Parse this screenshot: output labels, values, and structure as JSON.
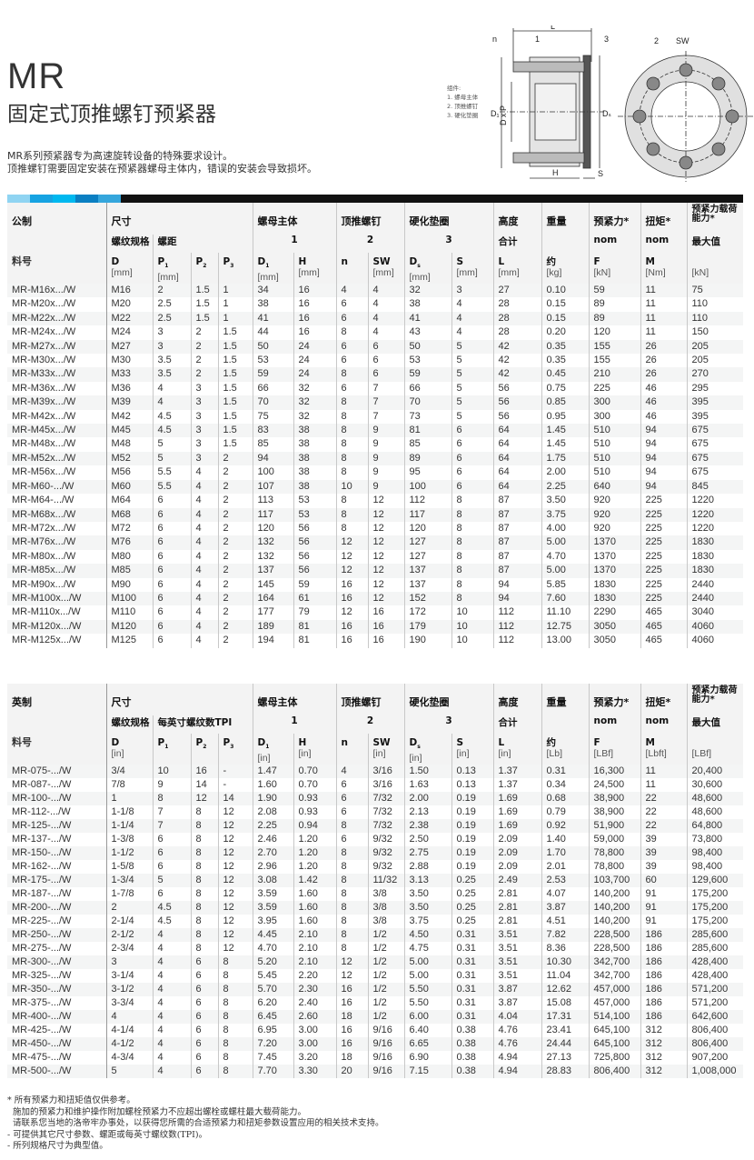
{
  "header": {
    "title": "MR",
    "subtitle": "固定式顶推螺钉预紧器",
    "description": [
      "MR系列预紧器专为高速旋转设备的特殊要求设计。",
      "顶推螺钉需要固定安装在预紧器螺母主体内，错误的安装会导致损坏。"
    ]
  },
  "diagram": {
    "legend_title": "组件:",
    "legend_items": [
      "1. 螺母主体",
      "2. 顶推螺钉",
      "3. 硬化垫圈"
    ],
    "labels": {
      "L": "L",
      "n": "n",
      "one": "1",
      "two": "2",
      "three": "3",
      "SW": "SW",
      "D1": "D₁",
      "DxP": "D x P",
      "Ds": "Dₛ",
      "H": "H",
      "S": "S"
    }
  },
  "banner_colors": [
    "#8fd4f2",
    "#16a3e2",
    "#00b8ef",
    "#0a7fc2",
    "#35a6dc"
  ],
  "metric": {
    "groups": {
      "system": "公制",
      "size": "尺寸",
      "body": "螺母主体",
      "screw": "顶推螺钉",
      "washer": "硬化垫圈",
      "height": "高度",
      "weight": "重量",
      "preload": "预紧力*",
      "torque": "扭矩*",
      "capacity": "预紧力载荷能力*"
    },
    "sub": {
      "thread": "螺纹规格",
      "pitch": "螺距",
      "body": "1",
      "screw": "2",
      "washer": "3",
      "height": "合计",
      "preload": "nom",
      "torque": "nom",
      "capacity": "最大值"
    },
    "part_label": "料号",
    "symbols": [
      "D",
      "P1",
      "P2",
      "P3",
      "D1",
      "H",
      "n",
      "SW",
      "Ds",
      "S",
      "L",
      "约",
      "F",
      "M",
      ""
    ],
    "units": [
      "[mm]",
      "[mm]",
      "",
      "",
      "[mm]",
      "[mm]",
      "",
      "[mm]",
      "[mm]",
      "[mm]",
      "[mm]",
      "[kg]",
      "[kN]",
      "[Nm]",
      "[kN]"
    ],
    "rows": [
      [
        "MR-M16x.../W",
        "M16",
        "2",
        "1.5",
        "1",
        "34",
        "16",
        "4",
        "4",
        "32",
        "3",
        "27",
        "0.10",
        "59",
        "11",
        "75"
      ],
      [
        "MR-M20x.../W",
        "M20",
        "2.5",
        "1.5",
        "1",
        "38",
        "16",
        "6",
        "4",
        "38",
        "4",
        "28",
        "0.15",
        "89",
        "11",
        "110"
      ],
      [
        "MR-M22x.../W",
        "M22",
        "2.5",
        "1.5",
        "1",
        "41",
        "16",
        "6",
        "4",
        "41",
        "4",
        "28",
        "0.15",
        "89",
        "11",
        "110"
      ],
      [
        "MR-M24x.../W",
        "M24",
        "3",
        "2",
        "1.5",
        "44",
        "16",
        "8",
        "4",
        "43",
        "4",
        "28",
        "0.20",
        "120",
        "11",
        "150"
      ],
      [
        "MR-M27x.../W",
        "M27",
        "3",
        "2",
        "1.5",
        "50",
        "24",
        "6",
        "6",
        "50",
        "5",
        "42",
        "0.35",
        "155",
        "26",
        "205"
      ],
      [
        "MR-M30x.../W",
        "M30",
        "3.5",
        "2",
        "1.5",
        "53",
        "24",
        "6",
        "6",
        "53",
        "5",
        "42",
        "0.35",
        "155",
        "26",
        "205"
      ],
      [
        "MR-M33x.../W",
        "M33",
        "3.5",
        "2",
        "1.5",
        "59",
        "24",
        "8",
        "6",
        "59",
        "5",
        "42",
        "0.45",
        "210",
        "26",
        "270"
      ],
      [
        "MR-M36x.../W",
        "M36",
        "4",
        "3",
        "1.5",
        "66",
        "32",
        "6",
        "7",
        "66",
        "5",
        "56",
        "0.75",
        "225",
        "46",
        "295"
      ],
      [
        "MR-M39x.../W",
        "M39",
        "4",
        "3",
        "1.5",
        "70",
        "32",
        "8",
        "7",
        "70",
        "5",
        "56",
        "0.85",
        "300",
        "46",
        "395"
      ],
      [
        "MR-M42x.../W",
        "M42",
        "4.5",
        "3",
        "1.5",
        "75",
        "32",
        "8",
        "7",
        "73",
        "5",
        "56",
        "0.95",
        "300",
        "46",
        "395"
      ],
      [
        "MR-M45x.../W",
        "M45",
        "4.5",
        "3",
        "1.5",
        "83",
        "38",
        "8",
        "9",
        "81",
        "6",
        "64",
        "1.45",
        "510",
        "94",
        "675"
      ],
      [
        "MR-M48x.../W",
        "M48",
        "5",
        "3",
        "1.5",
        "85",
        "38",
        "8",
        "9",
        "85",
        "6",
        "64",
        "1.45",
        "510",
        "94",
        "675"
      ],
      [
        "MR-M52x.../W",
        "M52",
        "5",
        "3",
        "2",
        "94",
        "38",
        "8",
        "9",
        "89",
        "6",
        "64",
        "1.75",
        "510",
        "94",
        "675"
      ],
      [
        "MR-M56x.../W",
        "M56",
        "5.5",
        "4",
        "2",
        "100",
        "38",
        "8",
        "9",
        "95",
        "6",
        "64",
        "2.00",
        "510",
        "94",
        "675"
      ],
      [
        "MR-M60-.../W",
        "M60",
        "5.5",
        "4",
        "2",
        "107",
        "38",
        "10",
        "9",
        "100",
        "6",
        "64",
        "2.25",
        "640",
        "94",
        "845"
      ],
      [
        "MR-M64-.../W",
        "M64",
        "6",
        "4",
        "2",
        "113",
        "53",
        "8",
        "12",
        "112",
        "8",
        "87",
        "3.50",
        "920",
        "225",
        "1220"
      ],
      [
        "MR-M68x.../W",
        "M68",
        "6",
        "4",
        "2",
        "117",
        "53",
        "8",
        "12",
        "117",
        "8",
        "87",
        "3.75",
        "920",
        "225",
        "1220"
      ],
      [
        "MR-M72x.../W",
        "M72",
        "6",
        "4",
        "2",
        "120",
        "56",
        "8",
        "12",
        "120",
        "8",
        "87",
        "4.00",
        "920",
        "225",
        "1220"
      ],
      [
        "MR-M76x.../W",
        "M76",
        "6",
        "4",
        "2",
        "132",
        "56",
        "12",
        "12",
        "127",
        "8",
        "87",
        "5.00",
        "1370",
        "225",
        "1830"
      ],
      [
        "MR-M80x.../W",
        "M80",
        "6",
        "4",
        "2",
        "132",
        "56",
        "12",
        "12",
        "127",
        "8",
        "87",
        "4.70",
        "1370",
        "225",
        "1830"
      ],
      [
        "MR-M85x.../W",
        "M85",
        "6",
        "4",
        "2",
        "137",
        "56",
        "12",
        "12",
        "137",
        "8",
        "87",
        "5.00",
        "1370",
        "225",
        "1830"
      ],
      [
        "MR-M90x.../W",
        "M90",
        "6",
        "4",
        "2",
        "145",
        "59",
        "16",
        "12",
        "137",
        "8",
        "94",
        "5.85",
        "1830",
        "225",
        "2440"
      ],
      [
        "MR-M100x.../W",
        "M100",
        "6",
        "4",
        "2",
        "164",
        "61",
        "16",
        "12",
        "152",
        "8",
        "94",
        "7.60",
        "1830",
        "225",
        "2440"
      ],
      [
        "MR-M110x.../W",
        "M110",
        "6",
        "4",
        "2",
        "177",
        "79",
        "12",
        "16",
        "172",
        "10",
        "112",
        "11.10",
        "2290",
        "465",
        "3040"
      ],
      [
        "MR-M120x.../W",
        "M120",
        "6",
        "4",
        "2",
        "189",
        "81",
        "16",
        "16",
        "179",
        "10",
        "112",
        "12.75",
        "3050",
        "465",
        "4060"
      ],
      [
        "MR-M125x.../W",
        "M125",
        "6",
        "4",
        "2",
        "194",
        "81",
        "16",
        "16",
        "190",
        "10",
        "112",
        "13.00",
        "3050",
        "465",
        "4060"
      ]
    ]
  },
  "imperial": {
    "groups": {
      "system": "英制",
      "size": "尺寸",
      "body": "螺母主体",
      "screw": "顶推螺钉",
      "washer": "硬化垫圈",
      "height": "高度",
      "weight": "重量",
      "preload": "预紧力*",
      "torque": "扭矩*",
      "capacity": "预紧力载荷能力*"
    },
    "sub": {
      "thread": "螺纹规格",
      "pitch": "每英寸螺纹数TPI",
      "body": "1",
      "screw": "2",
      "washer": "3",
      "height": "合计",
      "preload": "nom",
      "torque": "nom",
      "capacity": "最大值"
    },
    "part_label": "料号",
    "symbols": [
      "D",
      "P1",
      "P2",
      "P3",
      "D1",
      "H",
      "n",
      "SW",
      "Ds",
      "S",
      "L",
      "约",
      "F",
      "M",
      ""
    ],
    "units": [
      "[in]",
      "",
      "",
      "",
      "[in]",
      "[in]",
      "",
      "[in]",
      "[in]",
      "[in]",
      "[in]",
      "[Lb]",
      "[LBf]",
      "[Lbft]",
      "[LBf]"
    ],
    "rows": [
      [
        "MR-075-.../W",
        "3/4",
        "10",
        "16",
        "-",
        "1.47",
        "0.70",
        "4",
        "3/16",
        "1.50",
        "0.13",
        "1.37",
        "0.31",
        "16,300",
        "11",
        "20,400"
      ],
      [
        "MR-087-.../W",
        "7/8",
        "9",
        "14",
        "-",
        "1.60",
        "0.70",
        "6",
        "3/16",
        "1.63",
        "0.13",
        "1.37",
        "0.34",
        "24,500",
        "11",
        "30,600"
      ],
      [
        "MR-100-.../W",
        "1",
        "8",
        "12",
        "14",
        "1.90",
        "0.93",
        "6",
        "7/32",
        "2.00",
        "0.19",
        "1.69",
        "0.68",
        "38,900",
        "22",
        "48,600"
      ],
      [
        "MR-112-.../W",
        "1-1/8",
        "7",
        "8",
        "12",
        "2.08",
        "0.93",
        "6",
        "7/32",
        "2.13",
        "0.19",
        "1.69",
        "0.79",
        "38,900",
        "22",
        "48,600"
      ],
      [
        "MR-125-.../W",
        "1-1/4",
        "7",
        "8",
        "12",
        "2.25",
        "0.94",
        "8",
        "7/32",
        "2.38",
        "0.19",
        "1.69",
        "0.92",
        "51,900",
        "22",
        "64,800"
      ],
      [
        "MR-137-.../W",
        "1-3/8",
        "6",
        "8",
        "12",
        "2.46",
        "1.20",
        "6",
        "9/32",
        "2.50",
        "0.19",
        "2.09",
        "1.40",
        "59,000",
        "39",
        "73,800"
      ],
      [
        "MR-150-.../W",
        "1-1/2",
        "6",
        "8",
        "12",
        "2.70",
        "1.20",
        "8",
        "9/32",
        "2.75",
        "0.19",
        "2.09",
        "1.70",
        "78,800",
        "39",
        "98,400"
      ],
      [
        "MR-162-.../W",
        "1-5/8",
        "6",
        "8",
        "12",
        "2.96",
        "1.20",
        "8",
        "9/32",
        "2.88",
        "0.19",
        "2.09",
        "2.01",
        "78,800",
        "39",
        "98,400"
      ],
      [
        "MR-175-.../W",
        "1-3/4",
        "5",
        "8",
        "12",
        "3.08",
        "1.42",
        "8",
        "11/32",
        "3.13",
        "0.25",
        "2.49",
        "2.53",
        "103,700",
        "60",
        "129,600"
      ],
      [
        "MR-187-.../W",
        "1-7/8",
        "6",
        "8",
        "12",
        "3.59",
        "1.60",
        "8",
        "3/8",
        "3.50",
        "0.25",
        "2.81",
        "4.07",
        "140,200",
        "91",
        "175,200"
      ],
      [
        "MR-200-.../W",
        "2",
        "4.5",
        "8",
        "12",
        "3.59",
        "1.60",
        "8",
        "3/8",
        "3.50",
        "0.25",
        "2.81",
        "3.87",
        "140,200",
        "91",
        "175,200"
      ],
      [
        "MR-225-.../W",
        "2-1/4",
        "4.5",
        "8",
        "12",
        "3.95",
        "1.60",
        "8",
        "3/8",
        "3.75",
        "0.25",
        "2.81",
        "4.51",
        "140,200",
        "91",
        "175,200"
      ],
      [
        "MR-250-.../W",
        "2-1/2",
        "4",
        "8",
        "12",
        "4.45",
        "2.10",
        "8",
        "1/2",
        "4.50",
        "0.31",
        "3.51",
        "7.82",
        "228,500",
        "186",
        "285,600"
      ],
      [
        "MR-275-.../W",
        "2-3/4",
        "4",
        "8",
        "12",
        "4.70",
        "2.10",
        "8",
        "1/2",
        "4.75",
        "0.31",
        "3.51",
        "8.36",
        "228,500",
        "186",
        "285,600"
      ],
      [
        "MR-300-.../W",
        "3",
        "4",
        "6",
        "8",
        "5.20",
        "2.10",
        "12",
        "1/2",
        "5.00",
        "0.31",
        "3.51",
        "10.30",
        "342,700",
        "186",
        "428,400"
      ],
      [
        "MR-325-.../W",
        "3-1/4",
        "4",
        "6",
        "8",
        "5.45",
        "2.20",
        "12",
        "1/2",
        "5.00",
        "0.31",
        "3.51",
        "11.04",
        "342,700",
        "186",
        "428,400"
      ],
      [
        "MR-350-.../W",
        "3-1/2",
        "4",
        "6",
        "8",
        "5.70",
        "2.30",
        "16",
        "1/2",
        "5.50",
        "0.31",
        "3.87",
        "12.62",
        "457,000",
        "186",
        "571,200"
      ],
      [
        "MR-375-.../W",
        "3-3/4",
        "4",
        "6",
        "8",
        "6.20",
        "2.40",
        "16",
        "1/2",
        "5.50",
        "0.31",
        "3.87",
        "15.08",
        "457,000",
        "186",
        "571,200"
      ],
      [
        "MR-400-.../W",
        "4",
        "4",
        "6",
        "8",
        "6.45",
        "2.60",
        "18",
        "1/2",
        "6.00",
        "0.31",
        "4.04",
        "17.31",
        "514,100",
        "186",
        "642,600"
      ],
      [
        "MR-425-.../W",
        "4-1/4",
        "4",
        "6",
        "8",
        "6.95",
        "3.00",
        "16",
        "9/16",
        "6.40",
        "0.38",
        "4.76",
        "23.41",
        "645,100",
        "312",
        "806,400"
      ],
      [
        "MR-450-.../W",
        "4-1/2",
        "4",
        "6",
        "8",
        "7.20",
        "3.00",
        "16",
        "9/16",
        "6.65",
        "0.38",
        "4.76",
        "24.44",
        "645,100",
        "312",
        "806,400"
      ],
      [
        "MR-475-.../W",
        "4-3/4",
        "4",
        "6",
        "8",
        "7.45",
        "3.20",
        "18",
        "9/16",
        "6.90",
        "0.38",
        "4.94",
        "27.13",
        "725,800",
        "312",
        "907,200"
      ],
      [
        "MR-500-.../W",
        "5",
        "4",
        "6",
        "8",
        "7.70",
        "3.30",
        "20",
        "9/16",
        "7.15",
        "0.38",
        "4.94",
        "28.83",
        "806,400",
        "312",
        "1,008,000"
      ]
    ]
  },
  "footnotes": [
    "* 所有预紧力和扭矩值仅供参考。",
    "  施加的预紧力和维护操作附加螺栓预紧力不应超出螺栓或螺柱最大载荷能力。",
    "  请联系您当地的洛帝牢办事处，以获得您所需的合适预紧力和扭矩参数设置应用的相关技术支持。",
    "- 可提供其它尺寸参数、螺距或每英寸螺纹数(TPI)。",
    "- 所列规格尺寸为典型值。"
  ]
}
